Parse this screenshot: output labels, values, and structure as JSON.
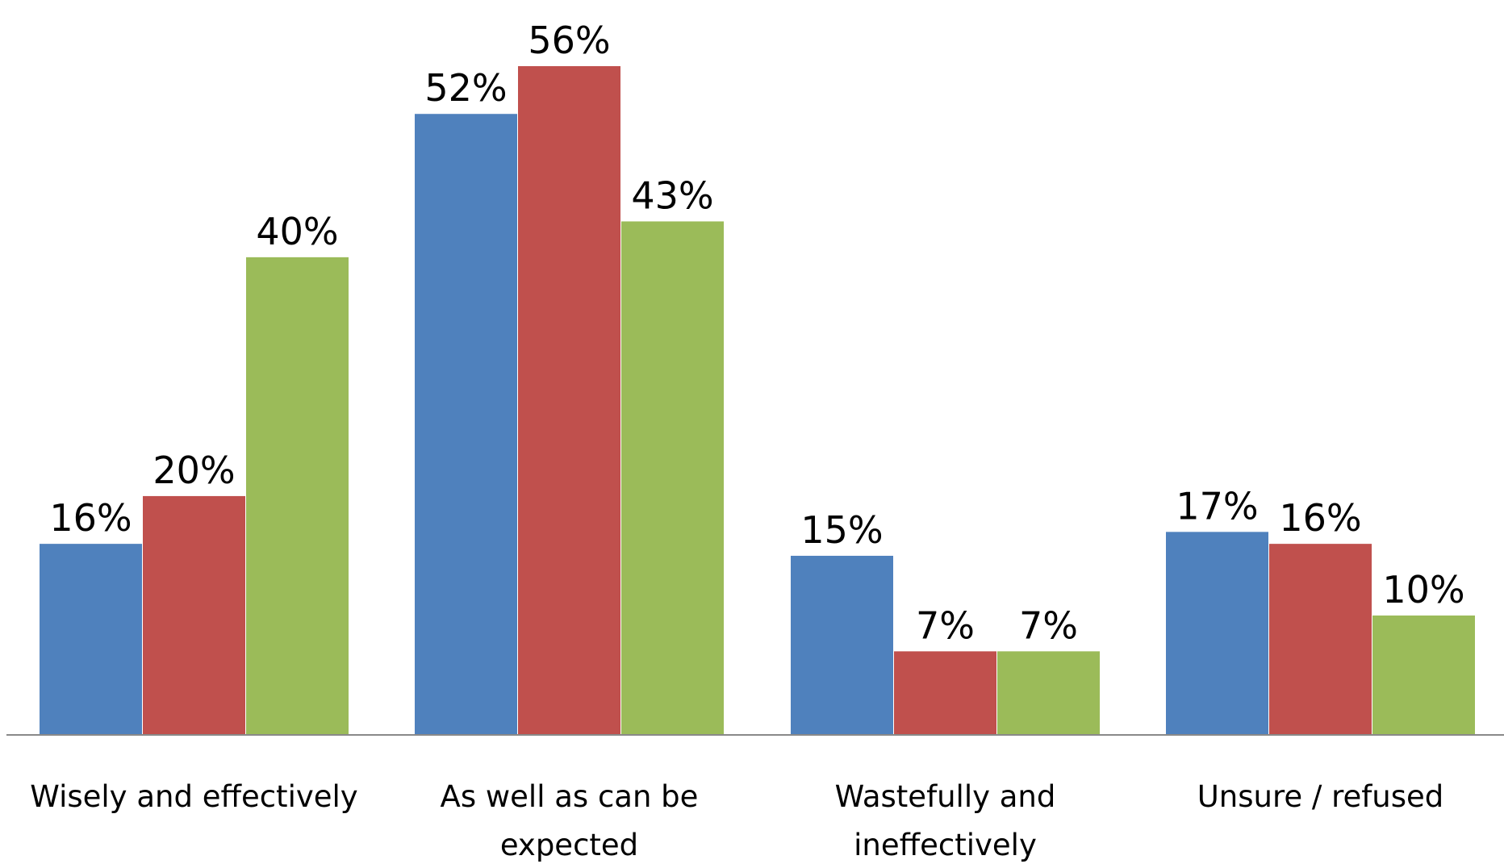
{
  "chart_data": {
    "type": "bar",
    "categories": [
      [
        "Wisely and effectively"
      ],
      [
        "As well as can be",
        "expected"
      ],
      [
        "Wastefully and",
        "ineffectively"
      ],
      [
        "Unsure / refused"
      ]
    ],
    "series": [
      {
        "color": "#4F81BD",
        "values": [
          16,
          52,
          15,
          17
        ],
        "labels": [
          "16%",
          "52%",
          "15%",
          "17%"
        ]
      },
      {
        "color": "#C0504D",
        "values": [
          20,
          56,
          7,
          16
        ],
        "labels": [
          "20%",
          "56%",
          "7%",
          "16%"
        ]
      },
      {
        "color": "#9BBB59",
        "values": [
          40,
          43,
          7,
          10
        ],
        "labels": [
          "40%",
          "43%",
          "7%",
          "10%"
        ]
      }
    ],
    "title": "",
    "xlabel": "",
    "ylabel": "",
    "ylim": [
      0,
      56
    ],
    "grid": false,
    "legend": "none"
  }
}
